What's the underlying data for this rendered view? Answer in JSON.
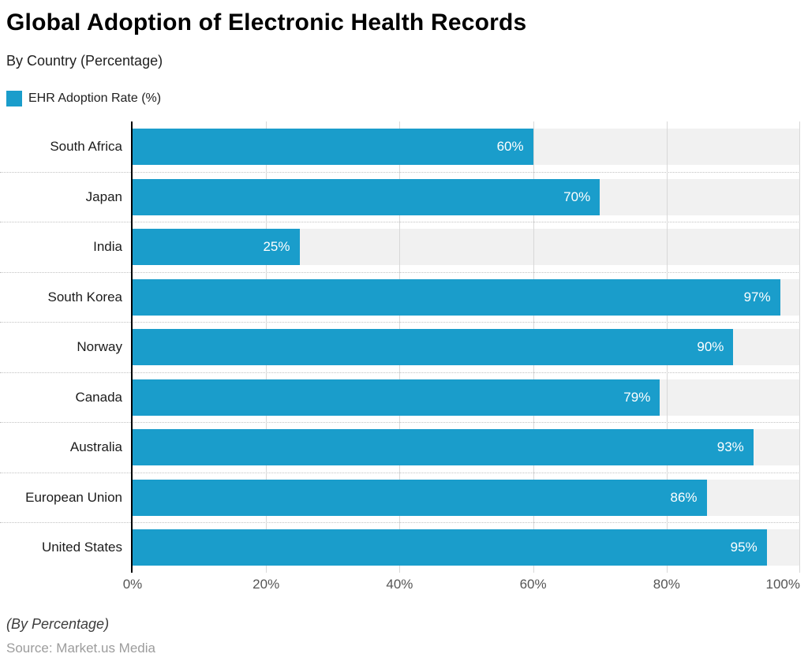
{
  "header": {
    "title": "Global Adoption of Electronic Health Records",
    "subtitle": "By Country (Percentage)",
    "legend": {
      "label": "EHR Adoption Rate (%)",
      "swatch_color": "#1a9dcb"
    }
  },
  "chart_data": {
    "type": "bar",
    "orientation": "horizontal",
    "title": "Global Adoption of Electronic Health Records",
    "subtitle": "By Country (Percentage)",
    "series_name": "EHR Adoption Rate (%)",
    "categories": [
      "South Africa",
      "Japan",
      "India",
      "South Korea",
      "Norway",
      "Canada",
      "Australia",
      "European Union",
      "United States"
    ],
    "values": [
      60,
      70,
      25,
      97,
      90,
      79,
      93,
      86,
      95
    ],
    "value_labels": [
      "60%",
      "70%",
      "25%",
      "97%",
      "90%",
      "79%",
      "93%",
      "86%",
      "95%"
    ],
    "xlabel": "",
    "ylabel": "",
    "xlim": [
      0,
      100
    ],
    "x_tick_values": [
      0,
      20,
      40,
      60,
      80,
      100
    ],
    "x_tick_labels": [
      "0%",
      "20%",
      "40%",
      "60%",
      "80%",
      "100%"
    ],
    "grid": "solid vertical gridlines at ticks; dotted horizontal separators between rows",
    "legend_position": "top-left",
    "bar_color": "#1a9dcb",
    "track_color": "#f1f1f1",
    "value_label_color": "#ffffff"
  },
  "footer": {
    "note": "(By Percentage)",
    "source": "Source: Market.us Media"
  }
}
